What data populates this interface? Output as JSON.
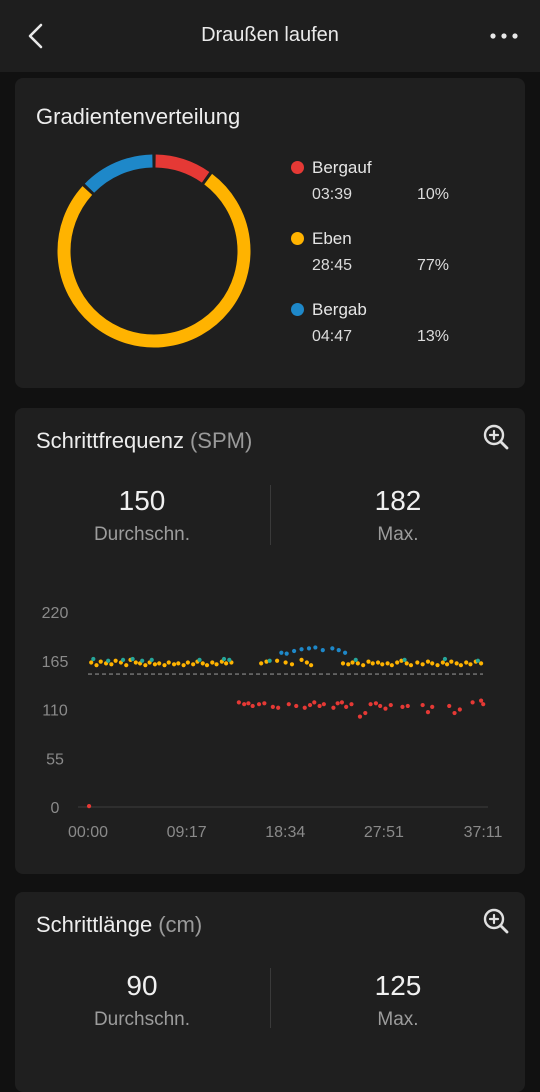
{
  "header": {
    "title": "Draußen laufen",
    "back_icon": "chevron-left-icon",
    "more_icon": "more-horizontal-icon"
  },
  "gradient": {
    "title": "Gradientenverteilung",
    "segments": [
      {
        "name": "Bergauf",
        "time": "03:39",
        "percent": "10%",
        "value": 10,
        "color": "#e53935"
      },
      {
        "name": "Eben",
        "time": "28:45",
        "percent": "77%",
        "value": 77,
        "color": "#ffb300"
      },
      {
        "name": "Bergab",
        "time": "04:47",
        "percent": "13%",
        "value": 13,
        "color": "#1e88c9"
      }
    ]
  },
  "cadence": {
    "title": "Schrittfrequenz",
    "unit": "(SPM)",
    "avg_value": "150",
    "avg_label": "Durchschn.",
    "max_value": "182",
    "max_label": "Max.",
    "zoom_icon": "zoom-in-icon",
    "chart_data": {
      "type": "scatter",
      "y_ticks": [
        "220",
        "165",
        "110",
        "55",
        "0"
      ],
      "x_ticks": [
        "00:00",
        "09:17",
        "18:34",
        "27:51",
        "37:11"
      ],
      "ylim": [
        0,
        220
      ],
      "xlim_minutes": [
        0,
        37.18
      ],
      "reference_line": 150,
      "colors": {
        "uphill": "#e53935",
        "flat": "#ffb300",
        "downhill": "#1e88c9",
        "mixed": "#26a69a"
      },
      "series": [
        {
          "color": "uphill",
          "points": [
            [
              0.1,
              1
            ],
            [
              14.2,
              118
            ],
            [
              14.7,
              116
            ],
            [
              15.1,
              117
            ],
            [
              15.5,
              114
            ],
            [
              16.1,
              116
            ],
            [
              16.6,
              117
            ],
            [
              17.4,
              113
            ],
            [
              17.9,
              112
            ],
            [
              18.9,
              116
            ],
            [
              19.6,
              114
            ],
            [
              20.4,
              112
            ],
            [
              20.9,
              115
            ],
            [
              21.3,
              118
            ],
            [
              21.8,
              114
            ],
            [
              22.2,
              116
            ],
            [
              23.1,
              112
            ],
            [
              23.5,
              117
            ],
            [
              23.9,
              118
            ],
            [
              24.3,
              113
            ],
            [
              24.8,
              116
            ],
            [
              25.6,
              102
            ],
            [
              26.1,
              106
            ],
            [
              26.6,
              116
            ],
            [
              27.1,
              117
            ],
            [
              27.5,
              114
            ],
            [
              28.0,
              111
            ],
            [
              28.5,
              115
            ],
            [
              29.6,
              113
            ],
            [
              30.1,
              114
            ],
            [
              31.5,
              115
            ],
            [
              32.0,
              107
            ],
            [
              32.4,
              113
            ],
            [
              34.0,
              114
            ],
            [
              34.5,
              106
            ],
            [
              35.0,
              110
            ],
            [
              36.2,
              118
            ],
            [
              37.0,
              120
            ],
            [
              37.2,
              116
            ]
          ]
        },
        {
          "color": "flat",
          "points": [
            [
              0.3,
              163
            ],
            [
              0.8,
              160
            ],
            [
              1.2,
              164
            ],
            [
              1.7,
              162
            ],
            [
              2.2,
              161
            ],
            [
              2.6,
              165
            ],
            [
              3.1,
              163
            ],
            [
              3.6,
              160
            ],
            [
              4.0,
              166
            ],
            [
              4.5,
              163
            ],
            [
              4.9,
              162
            ],
            [
              5.4,
              160
            ],
            [
              5.8,
              163
            ],
            [
              6.3,
              161
            ],
            [
              6.7,
              162
            ],
            [
              7.2,
              160
            ],
            [
              7.6,
              163
            ],
            [
              8.1,
              161
            ],
            [
              8.5,
              162
            ],
            [
              9.0,
              160
            ],
            [
              9.4,
              163
            ],
            [
              9.9,
              161
            ],
            [
              10.3,
              164
            ],
            [
              10.8,
              162
            ],
            [
              11.2,
              160
            ],
            [
              11.7,
              163
            ],
            [
              12.1,
              161
            ],
            [
              12.6,
              164
            ],
            [
              13.0,
              162
            ],
            [
              13.5,
              163
            ],
            [
              16.3,
              162
            ],
            [
              16.8,
              164
            ],
            [
              17.8,
              165
            ],
            [
              18.6,
              163
            ],
            [
              19.2,
              161
            ],
            [
              20.1,
              166
            ],
            [
              20.6,
              163
            ],
            [
              21.0,
              160
            ],
            [
              24.0,
              162
            ],
            [
              24.5,
              161
            ],
            [
              24.9,
              163
            ],
            [
              25.4,
              162
            ],
            [
              25.9,
              160
            ],
            [
              26.4,
              164
            ],
            [
              26.8,
              162
            ],
            [
              27.3,
              163
            ],
            [
              27.7,
              161
            ],
            [
              28.2,
              162
            ],
            [
              28.6,
              160
            ],
            [
              29.1,
              163
            ],
            [
              29.5,
              165
            ],
            [
              30.0,
              162
            ],
            [
              30.4,
              160
            ],
            [
              31.0,
              163
            ],
            [
              31.5,
              161
            ],
            [
              32.0,
              164
            ],
            [
              32.4,
              162
            ],
            [
              32.9,
              160
            ],
            [
              33.4,
              163
            ],
            [
              33.8,
              161
            ],
            [
              34.2,
              164
            ],
            [
              34.7,
              162
            ],
            [
              35.1,
              160
            ],
            [
              35.6,
              163
            ],
            [
              36.0,
              161
            ],
            [
              36.5,
              164
            ],
            [
              37.0,
              162
            ]
          ]
        },
        {
          "color": "mixed",
          "points": [
            [
              0.5,
              167
            ],
            [
              1.9,
              165
            ],
            [
              3.3,
              166
            ],
            [
              4.2,
              167
            ],
            [
              5.1,
              165
            ],
            [
              6.0,
              166
            ],
            [
              10.5,
              166
            ],
            [
              12.8,
              167
            ],
            [
              13.3,
              166
            ],
            [
              17.1,
              165
            ],
            [
              25.2,
              166
            ],
            [
              29.8,
              166
            ],
            [
              33.6,
              167
            ],
            [
              36.7,
              165
            ]
          ]
        },
        {
          "color": "downhill",
          "points": [
            [
              18.2,
              174
            ],
            [
              18.7,
              173
            ],
            [
              19.4,
              176
            ],
            [
              20.1,
              178
            ],
            [
              20.8,
              179
            ],
            [
              21.4,
              180
            ],
            [
              22.1,
              177
            ],
            [
              23.0,
              179
            ],
            [
              23.6,
              177
            ],
            [
              24.2,
              174
            ]
          ]
        }
      ]
    }
  },
  "stride": {
    "title": "Schrittlänge",
    "unit": "(cm)",
    "avg_value": "90",
    "avg_label": "Durchschn.",
    "max_value": "125",
    "max_label": "Max.",
    "zoom_icon": "zoom-in-icon"
  }
}
